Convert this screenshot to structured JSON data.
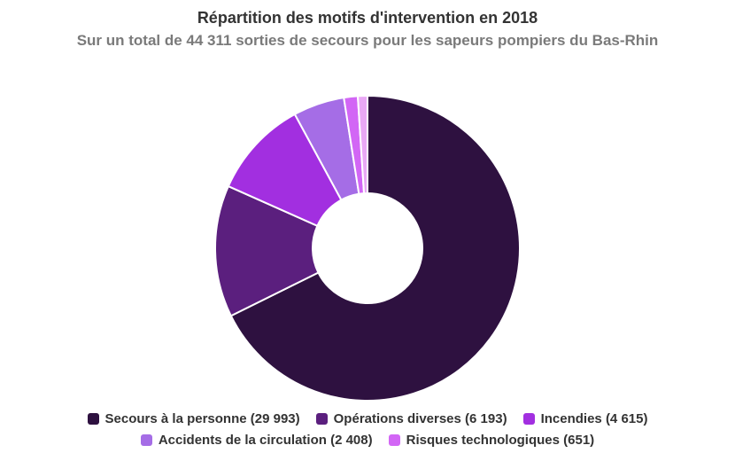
{
  "chart_data": {
    "type": "pie",
    "title": "Répartition des motifs d'intervention en 2018",
    "subtitle": "Sur un total de 44 311 sorties de secours pour les sapeurs pompiers du Bas-Rhin",
    "donut": true,
    "legend_position": "bottom",
    "series": [
      {
        "name": "Secours à la personne",
        "value": 29993,
        "color": "#2e1140",
        "legend_label": "Secours à la personne (29 993)"
      },
      {
        "name": "Opérations diverses",
        "value": 6193,
        "color": "#5b1f7e",
        "legend_label": "Opérations diverses (6 193)"
      },
      {
        "name": "Incendies",
        "value": 4615,
        "color": "#a22fe0",
        "legend_label": "Incendies (4 615)"
      },
      {
        "name": "Accidents de la circulation",
        "value": 2408,
        "color": "#a56de6",
        "legend_label": "Accidents de la circulation (2 408)"
      },
      {
        "name": "Risques technologiques",
        "value": 651,
        "color": "#d266f5",
        "legend_label": "Risques technologiques (651)"
      },
      {
        "name": "",
        "value": 451,
        "color": "#e9a8f5",
        "legend_label": ""
      }
    ]
  }
}
